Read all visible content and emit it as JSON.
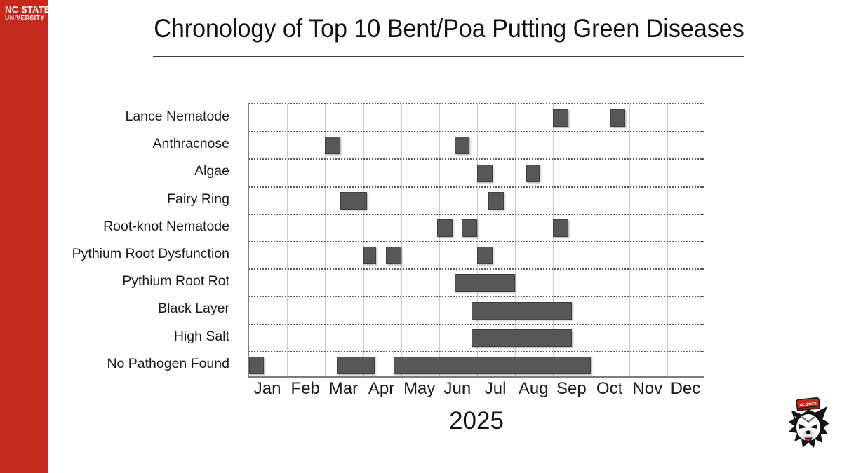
{
  "brand": {
    "line1": "NC STATE",
    "line2": "UNIVERSITY"
  },
  "header": {
    "title": "Chronology of Top 10 Bent/Poa Putting Green Diseases"
  },
  "footer": {
    "year": "2025"
  },
  "logo": {
    "name": "nc-state-wolfpack-wolf-head",
    "hat_text": "NC STATE"
  },
  "colors": {
    "brand_red": "#C3291D",
    "bar_fill": "#575757",
    "bar_border": "#3F3F3F",
    "grid_light": "#CCCCCC",
    "grid_dotted": "#595959",
    "axis_solid": "#808080",
    "text": "#1A1A1A"
  },
  "chart_data": {
    "type": "gantt",
    "title": "Chronology of Top 10 Bent/Poa Putting Green Diseases",
    "x_axis": {
      "unit": "month",
      "range": [
        0,
        12
      ],
      "tick_labels": [
        "Jan",
        "Feb",
        "Mar",
        "Apr",
        "May",
        "Jun",
        "Jul",
        "Aug",
        "Sep",
        "Oct",
        "Nov",
        "Dec"
      ],
      "year_label": "2025",
      "grid": "vertical solid light, horizontal dotted row separators"
    },
    "y_axis": {
      "categories": [
        "Lance Nematode",
        "Anthracnose",
        "Algae",
        "Fairy Ring",
        "Root-knot Nematode",
        "Pythium Root Dysfunction",
        "Pythium Root Rot",
        "Black Layer",
        "High Salt",
        "No Pathogen Found"
      ]
    },
    "rows": [
      {
        "label": "Lance Nematode",
        "bars": [
          {
            "start": 8.0,
            "end": 8.4
          },
          {
            "start": 9.5,
            "end": 9.9
          }
        ]
      },
      {
        "label": "Anthracnose",
        "bars": [
          {
            "start": 2.0,
            "end": 2.4
          },
          {
            "start": 5.4,
            "end": 5.8
          }
        ]
      },
      {
        "label": "Algae",
        "bars": [
          {
            "start": 6.0,
            "end": 6.4
          },
          {
            "start": 7.3,
            "end": 7.65
          }
        ]
      },
      {
        "label": "Fairy Ring",
        "bars": [
          {
            "start": 2.4,
            "end": 3.1
          },
          {
            "start": 6.3,
            "end": 6.7
          }
        ]
      },
      {
        "label": "Root-knot Nematode",
        "bars": [
          {
            "start": 4.95,
            "end": 5.35
          },
          {
            "start": 5.6,
            "end": 6.0
          },
          {
            "start": 8.0,
            "end": 8.4
          }
        ]
      },
      {
        "label": "Pythium Root Dysfunction",
        "bars": [
          {
            "start": 3.0,
            "end": 3.35
          },
          {
            "start": 3.6,
            "end": 4.0
          },
          {
            "start": 6.0,
            "end": 6.4
          }
        ]
      },
      {
        "label": "Pythium Root Rot",
        "bars": [
          {
            "start": 5.4,
            "end": 7.0
          }
        ]
      },
      {
        "label": "Black Layer",
        "bars": [
          {
            "start": 5.85,
            "end": 8.5
          }
        ]
      },
      {
        "label": "High Salt",
        "bars": [
          {
            "start": 5.85,
            "end": 8.5
          }
        ]
      },
      {
        "label": "No Pathogen Found",
        "bars": [
          {
            "start": 0.0,
            "end": 0.38
          },
          {
            "start": 2.3,
            "end": 3.3
          },
          {
            "start": 3.8,
            "end": 9.0
          }
        ]
      }
    ]
  }
}
